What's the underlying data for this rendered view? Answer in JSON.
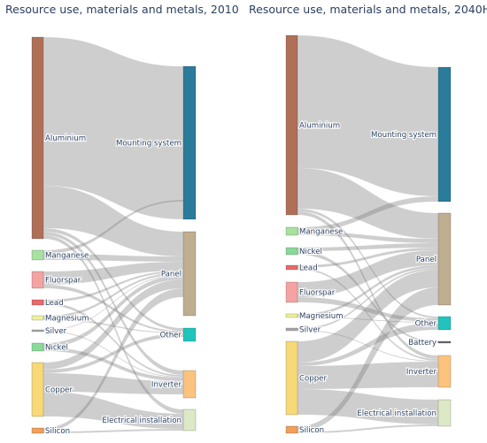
{
  "charts": [
    {
      "title": "Resource use, materials and metals, 2010",
      "sources": [
        {
          "name": "Aluminium",
          "color": "#b07057"
        },
        {
          "name": "Manganese",
          "color": "#a9e2a0"
        },
        {
          "name": "Fluorspar",
          "color": "#f4a3a3"
        },
        {
          "name": "Lead",
          "color": "#e96a6a"
        },
        {
          "name": "Magnesium",
          "color": "#eef0a0"
        },
        {
          "name": "Silver",
          "color": "#a9a9a9"
        },
        {
          "name": "Nickel",
          "color": "#8ad99a"
        },
        {
          "name": "Copper",
          "color": "#f7d978"
        },
        {
          "name": "Silicon",
          "color": "#f0a05a"
        }
      ],
      "targets": [
        {
          "name": "Mounting system",
          "color": "#2b7b9b"
        },
        {
          "name": "Panel",
          "color": "#bfae8f"
        },
        {
          "name": "Other",
          "color": "#21c4bd"
        },
        {
          "name": "Inverter",
          "color": "#fcc37e"
        },
        {
          "name": "Electrical installation",
          "color": "#dce8c6"
        }
      ]
    },
    {
      "title": "Resource use, materials and metals, 2040H",
      "sources": [
        {
          "name": "Aluminium",
          "color": "#b07057"
        },
        {
          "name": "Manganese",
          "color": "#a9e2a0"
        },
        {
          "name": "Nickel",
          "color": "#8ad99a"
        },
        {
          "name": "Lead",
          "color": "#e96a6a"
        },
        {
          "name": "Fluorspar",
          "color": "#f4a3a3"
        },
        {
          "name": "Magnesium",
          "color": "#eef0a0"
        },
        {
          "name": "Silver",
          "color": "#a9a9a9"
        },
        {
          "name": "Copper",
          "color": "#f7d978"
        },
        {
          "name": "Silicon",
          "color": "#f0a05a"
        }
      ],
      "targets": [
        {
          "name": "Mounting system",
          "color": "#2b7b9b"
        },
        {
          "name": "Panel",
          "color": "#bfae8f"
        },
        {
          "name": "Other",
          "color": "#21c4bd"
        },
        {
          "name": "Battery",
          "color": "#6b6b6b"
        },
        {
          "name": "Inverter",
          "color": "#fcc37e"
        },
        {
          "name": "Electrical installation",
          "color": "#dce8c6"
        }
      ]
    }
  ]
}
